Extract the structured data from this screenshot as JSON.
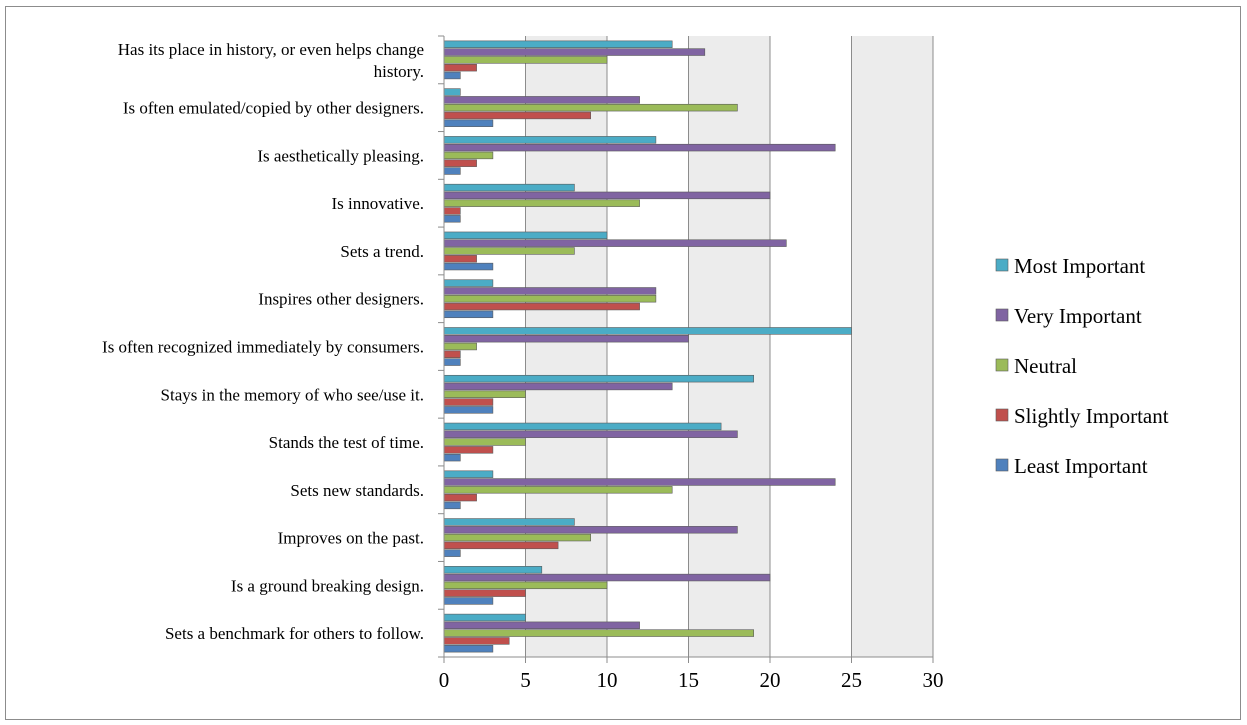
{
  "chart_data": {
    "type": "bar",
    "orientation": "horizontal",
    "categories": [
      "Has its place in history, or even helps change history.",
      "Is often emulated/copied by other designers.",
      "Is aesthetically pleasing.",
      "Is innovative.",
      "Sets a trend.",
      "Inspires other designers.",
      "Is often recognized immediately by consumers.",
      "Stays in the memory of who see/use it.",
      "Stands the test of time.",
      "Sets new standards.",
      "Improves on the past.",
      "Is a ground breaking design.",
      "Sets a benchmark for others to follow."
    ],
    "series": [
      {
        "name": "Most Important",
        "color": "#4bacc6",
        "values": [
          14,
          1,
          13,
          8,
          10,
          3,
          25,
          19,
          17,
          3,
          8,
          6,
          5
        ]
      },
      {
        "name": "Very Important",
        "color": "#8064a2",
        "values": [
          16,
          12,
          24,
          20,
          21,
          13,
          15,
          14,
          18,
          24,
          18,
          20,
          12
        ]
      },
      {
        "name": "Neutral",
        "color": "#9bbb59",
        "values": [
          10,
          18,
          3,
          12,
          8,
          13,
          2,
          5,
          5,
          14,
          9,
          10,
          19
        ]
      },
      {
        "name": "Slightly Important",
        "color": "#c0504d",
        "values": [
          2,
          9,
          2,
          1,
          2,
          12,
          1,
          3,
          3,
          2,
          7,
          5,
          4
        ]
      },
      {
        "name": "Least Important",
        "color": "#4f81bd",
        "values": [
          1,
          3,
          1,
          1,
          3,
          3,
          1,
          3,
          1,
          1,
          1,
          3,
          3
        ]
      }
    ],
    "xlim": [
      0,
      30
    ],
    "xticks": [
      0,
      5,
      10,
      15,
      20,
      25,
      30
    ],
    "grid": true,
    "legend_position": "right",
    "title": "",
    "xlabel": "",
    "ylabel": ""
  }
}
